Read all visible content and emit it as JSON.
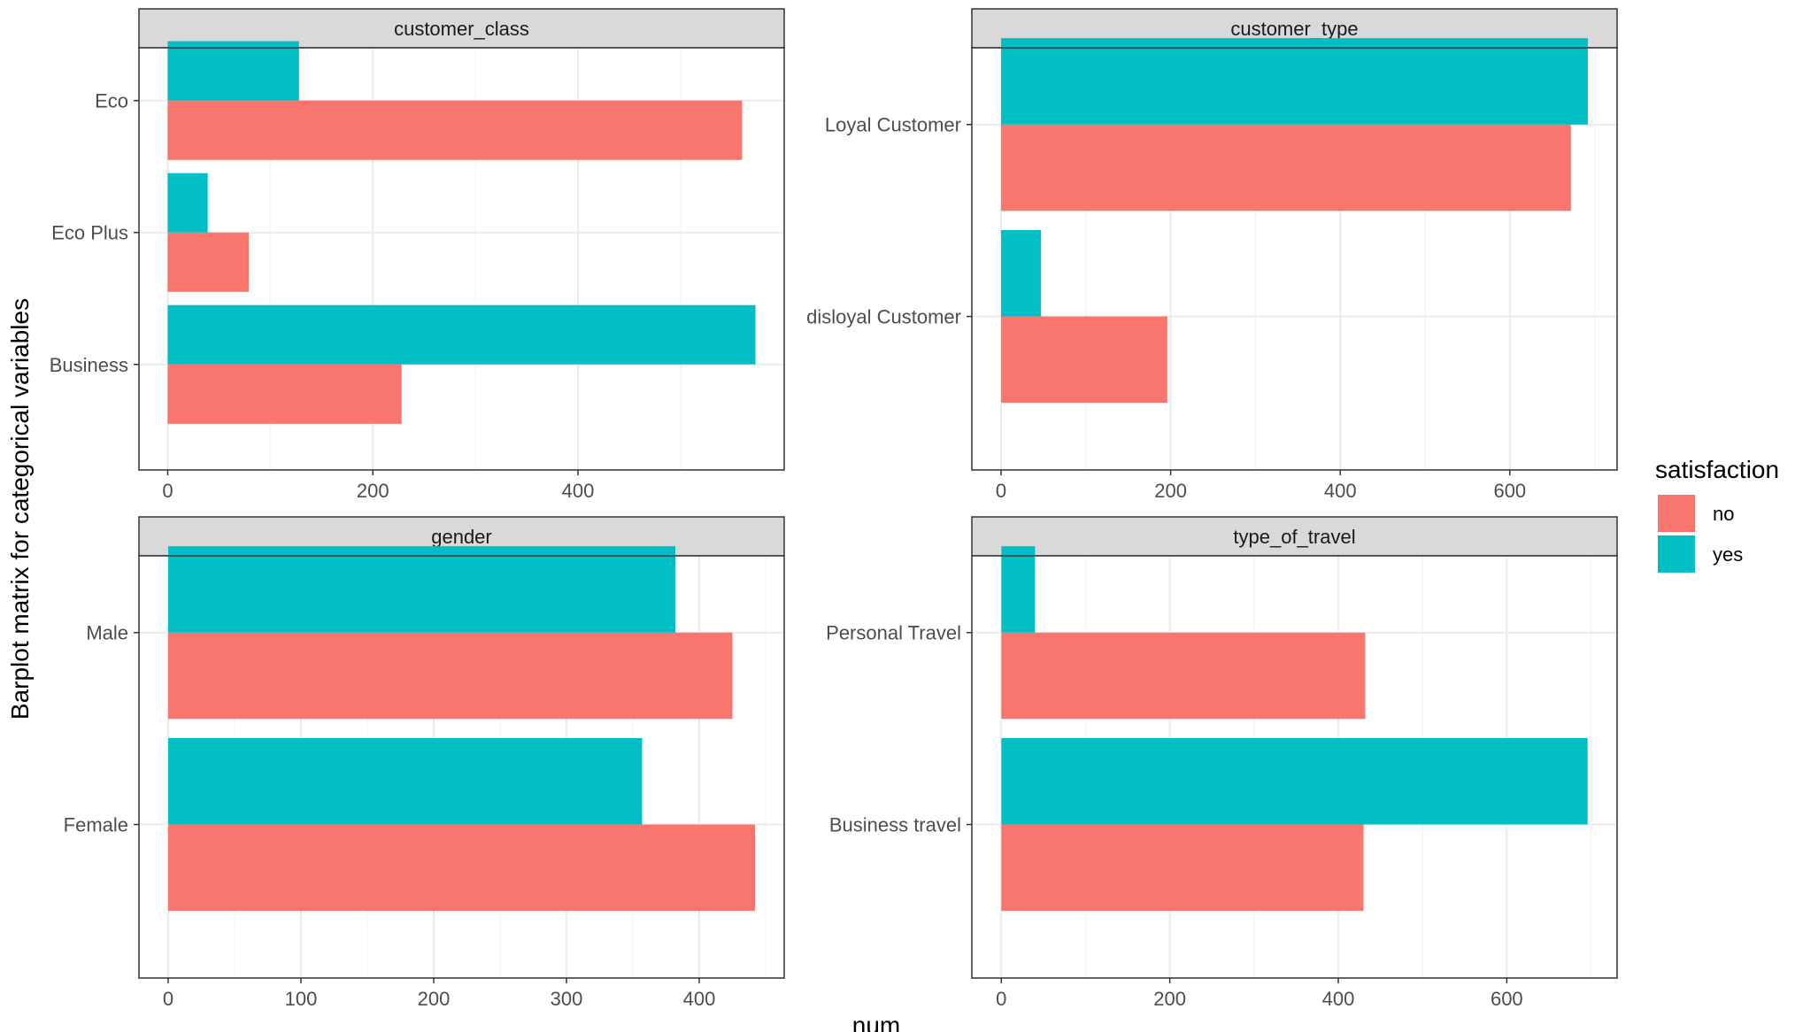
{
  "chart_data": {
    "type": "bar",
    "orientation": "horizontal",
    "layout": "facet_wrap 2x2, free scales",
    "xlabel": "num",
    "ylabel": "Barplot matrix for categorical variables",
    "grid": true,
    "legend": {
      "title": "satisfaction",
      "placement": "right",
      "entries": [
        {
          "name": "no",
          "color": "#F8766D"
        },
        {
          "name": "yes",
          "color": "#00BFC4"
        }
      ]
    },
    "panels": [
      {
        "title": "customer_class",
        "categories": [
          "Eco",
          "Eco Plus",
          "Business"
        ],
        "series": [
          {
            "name": "no",
            "values": [
              560,
              79,
              228
            ]
          },
          {
            "name": "yes",
            "values": [
              128,
              39,
              573
            ]
          }
        ],
        "xlim": [
          -28,
          601
        ],
        "xticks": [
          0,
          200,
          400
        ]
      },
      {
        "title": "customer_type",
        "categories": [
          "Loyal Customer",
          "disloyal Customer"
        ],
        "series": [
          {
            "name": "no",
            "values": [
              672,
              196
            ]
          },
          {
            "name": "yes",
            "values": [
              692,
              47
            ]
          }
        ],
        "xlim": [
          -34.5,
          726.5
        ],
        "xticks": [
          0,
          200,
          400,
          600
        ]
      },
      {
        "title": "gender",
        "categories": [
          "Male",
          "Female"
        ],
        "series": [
          {
            "name": "no",
            "values": [
              425,
              442
            ]
          },
          {
            "name": "yes",
            "values": [
              382,
              357
            ]
          }
        ],
        "xlim": [
          -22,
          464
        ],
        "xticks": [
          0,
          100,
          200,
          300,
          400
        ]
      },
      {
        "title": "type_of_travel",
        "categories": [
          "Personal Travel",
          "Business travel"
        ],
        "series": [
          {
            "name": "no",
            "values": [
              432,
              430
            ]
          },
          {
            "name": "yes",
            "values": [
              40,
              696
            ]
          }
        ],
        "xlim": [
          -35,
          731
        ],
        "xticks": [
          0,
          200,
          400,
          600
        ]
      }
    ]
  }
}
